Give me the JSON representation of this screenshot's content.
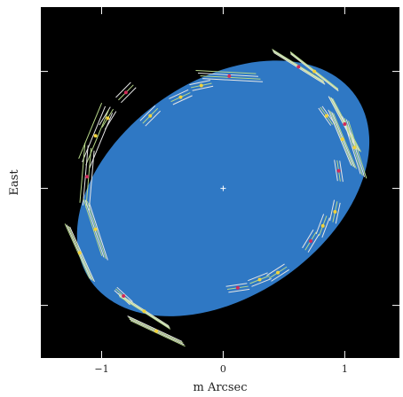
{
  "chart_data": {
    "type": "scatter",
    "title": "",
    "xlabel": "m Arcsec",
    "ylabel": "East",
    "xlim": [
      -1.5,
      1.45
    ],
    "ylim": [
      -1.45,
      1.55
    ],
    "x_ticks": [
      -1,
      0,
      1
    ],
    "y_ticks": [
      -1,
      0,
      1
    ],
    "x_tick_labels": [
      "−1",
      "0",
      "1"
    ],
    "background_color": "#000000",
    "grid": false,
    "legend": "none",
    "disk": {
      "center": [
        0,
        0
      ],
      "semi_major": 1.33,
      "semi_minor": 0.92,
      "position_angle_deg": 35,
      "color": "#2f78c4"
    },
    "center_marker": [
      0,
      0
    ],
    "series": [
      {
        "values": [
          [
            0.62,
            1.04
          ],
          [
            0.75,
            1.0
          ],
          [
            0.85,
            0.62
          ],
          [
            1.0,
            0.55
          ],
          [
            0.98,
            0.42
          ],
          [
            1.08,
            0.35
          ],
          [
            -0.8,
            0.82
          ],
          [
            -0.95,
            0.6
          ],
          [
            -1.05,
            0.45
          ],
          [
            -1.12,
            0.1
          ],
          [
            -1.05,
            -0.35
          ],
          [
            -1.18,
            -0.55
          ],
          [
            -0.82,
            -0.92
          ],
          [
            -0.65,
            -1.05
          ],
          [
            -0.55,
            -1.22
          ],
          [
            0.12,
            -0.85
          ],
          [
            0.3,
            -0.78
          ],
          [
            0.45,
            -0.72
          ],
          [
            0.72,
            -0.45
          ],
          [
            0.82,
            -0.32
          ],
          [
            0.92,
            -0.2
          ],
          [
            0.95,
            0.15
          ],
          [
            -0.35,
            0.78
          ],
          [
            -0.18,
            0.88
          ],
          [
            0.05,
            0.96
          ],
          [
            -0.6,
            0.62
          ]
        ]
      }
    ]
  }
}
